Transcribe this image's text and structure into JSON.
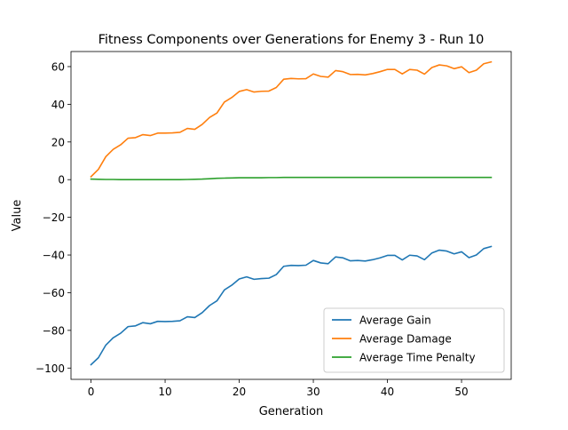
{
  "chart_data": {
    "type": "line",
    "title": "Fitness Components over Generations for Enemy 3 - Run 10",
    "xlabel": "Generation",
    "ylabel": "Value",
    "xlim": [
      -2.7,
      56.7
    ],
    "ylim": [
      -106,
      68
    ],
    "xticks": [
      0,
      10,
      20,
      30,
      40,
      50
    ],
    "yticks": [
      -100,
      -80,
      -60,
      -40,
      -20,
      0,
      20,
      40,
      60
    ],
    "legend_position": "lower-right",
    "grid": false,
    "x": [
      0,
      1,
      2,
      3,
      4,
      5,
      6,
      7,
      8,
      9,
      10,
      11,
      12,
      13,
      14,
      15,
      16,
      17,
      18,
      19,
      20,
      21,
      22,
      23,
      24,
      25,
      26,
      27,
      28,
      29,
      30,
      31,
      32,
      33,
      34,
      35,
      36,
      37,
      38,
      39,
      40,
      41,
      42,
      43,
      44,
      45,
      46,
      47,
      48,
      49,
      50,
      51,
      52,
      53,
      54
    ],
    "series": [
      {
        "name": "Average Gain",
        "color": "#1f77b4",
        "values": [
          -98.2,
          -94.5,
          -87.8,
          -83.9,
          -81.5,
          -78.0,
          -77.6,
          -75.9,
          -76.5,
          -75.2,
          -75.3,
          -75.2,
          -74.9,
          -72.8,
          -73.2,
          -70.6,
          -66.8,
          -64.3,
          -58.5,
          -56.0,
          -52.7,
          -51.6,
          -52.9,
          -52.5,
          -52.3,
          -50.4,
          -46.0,
          -45.5,
          -45.6,
          -45.4,
          -42.9,
          -44.2,
          -44.6,
          -41.0,
          -41.5,
          -43.1,
          -42.9,
          -43.2,
          -42.5,
          -41.5,
          -40.2,
          -40.2,
          -42.6,
          -40.1,
          -40.5,
          -42.5,
          -38.9,
          -37.4,
          -37.9,
          -39.4,
          -38.3,
          -41.4,
          -40.0,
          -36.6,
          -35.5
        ]
      },
      {
        "name": "Average Damage",
        "color": "#ff7f0e",
        "values": [
          1.6,
          5.5,
          12.2,
          16.1,
          18.5,
          22.0,
          22.3,
          23.9,
          23.4,
          24.7,
          24.7,
          24.8,
          25.1,
          27.2,
          26.7,
          29.3,
          33.0,
          35.4,
          41.2,
          43.6,
          46.8,
          47.8,
          46.5,
          46.9,
          47.0,
          48.9,
          53.3,
          53.7,
          53.5,
          53.6,
          56.1,
          54.8,
          54.4,
          57.9,
          57.3,
          55.8,
          55.9,
          55.6,
          56.3,
          57.3,
          58.5,
          58.5,
          56.1,
          58.5,
          58.1,
          56.0,
          59.5,
          60.9,
          60.4,
          58.9,
          59.9,
          56.8,
          58.1,
          61.5,
          62.5
        ]
      },
      {
        "name": "Average Time Penalty",
        "color": "#2ca02c",
        "values": [
          0.3,
          0.2,
          0.1,
          0.1,
          0.0,
          0.0,
          0.0,
          0.0,
          0.0,
          0.0,
          0.0,
          0.0,
          0.0,
          0.1,
          0.2,
          0.3,
          0.5,
          0.7,
          0.8,
          0.9,
          1.0,
          1.0,
          1.0,
          1.0,
          1.1,
          1.1,
          1.2,
          1.2,
          1.2,
          1.2,
          1.2,
          1.2,
          1.2,
          1.2,
          1.2,
          1.2,
          1.2,
          1.2,
          1.2,
          1.2,
          1.2,
          1.2,
          1.2,
          1.2,
          1.2,
          1.2,
          1.2,
          1.2,
          1.2,
          1.2,
          1.2,
          1.2,
          1.2,
          1.2,
          1.2
        ]
      }
    ]
  }
}
